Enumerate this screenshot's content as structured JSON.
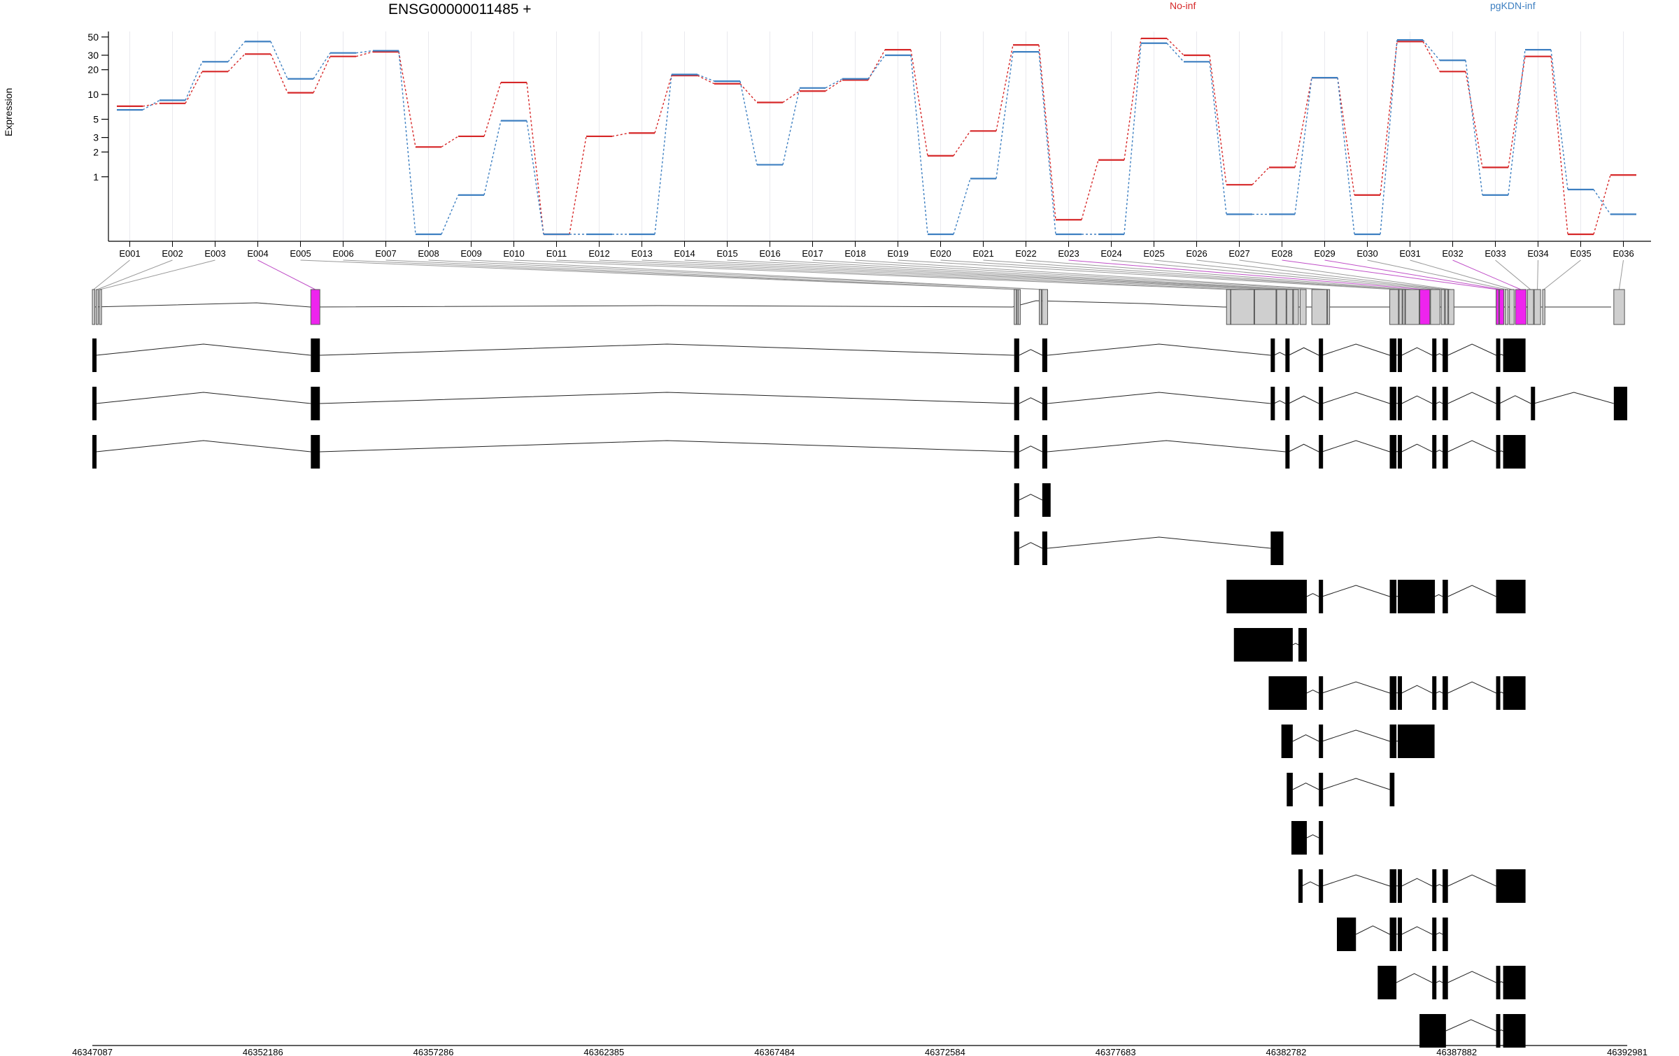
{
  "chart_data": {
    "type": "line",
    "title": "ENSG00000011485 +",
    "ylabel": "Expression",
    "yscale": "log",
    "yticks": [
      1,
      2,
      3,
      5,
      10,
      20,
      30,
      50
    ],
    "legend_placement": "top",
    "categories": [
      "E001",
      "E002",
      "E003",
      "E004",
      "E005",
      "E006",
      "E007",
      "E008",
      "E009",
      "E010",
      "E011",
      "E012",
      "E013",
      "E014",
      "E015",
      "E016",
      "E017",
      "E018",
      "E019",
      "E020",
      "E021",
      "E022",
      "E023",
      "E024",
      "E025",
      "E026",
      "E027",
      "E028",
      "E029",
      "E030",
      "E031",
      "E032",
      "E033",
      "E034",
      "E035",
      "E036"
    ],
    "series": [
      {
        "name": "No-inf",
        "color": "#d62728",
        "values": [
          7.2,
          7.8,
          19,
          31,
          10.5,
          29,
          33,
          2.3,
          3.1,
          14,
          0.2,
          3.1,
          3.4,
          17,
          13.5,
          8,
          11,
          15,
          35,
          1.8,
          3.6,
          40,
          0.3,
          1.6,
          48,
          30,
          0.8,
          1.3,
          16,
          0.6,
          44,
          19,
          1.3,
          29,
          0.2,
          1.05
        ]
      },
      {
        "name": "pgKDN-inf",
        "color": "#3d7fc1",
        "values": [
          6.5,
          8.5,
          25,
          44,
          15.5,
          32,
          34,
          0.2,
          0.6,
          4.8,
          0.2,
          0.2,
          0.2,
          17.5,
          14.5,
          1.4,
          12,
          15.5,
          30,
          0.2,
          0.95,
          33,
          0.2,
          0.2,
          42,
          25,
          0.35,
          0.35,
          16,
          0.2,
          46,
          26,
          0.6,
          35,
          0.7,
          0.35
        ]
      }
    ],
    "highlighted_exons": [
      "E004",
      "E023",
      "E028",
      "E029",
      "E032"
    ],
    "genomic_ticks": [
      "46347087",
      "46352186",
      "46357286",
      "46362385",
      "46367484",
      "46372584",
      "46377683",
      "46382782",
      "46387882",
      "46392981"
    ],
    "transcript_count": 15
  }
}
